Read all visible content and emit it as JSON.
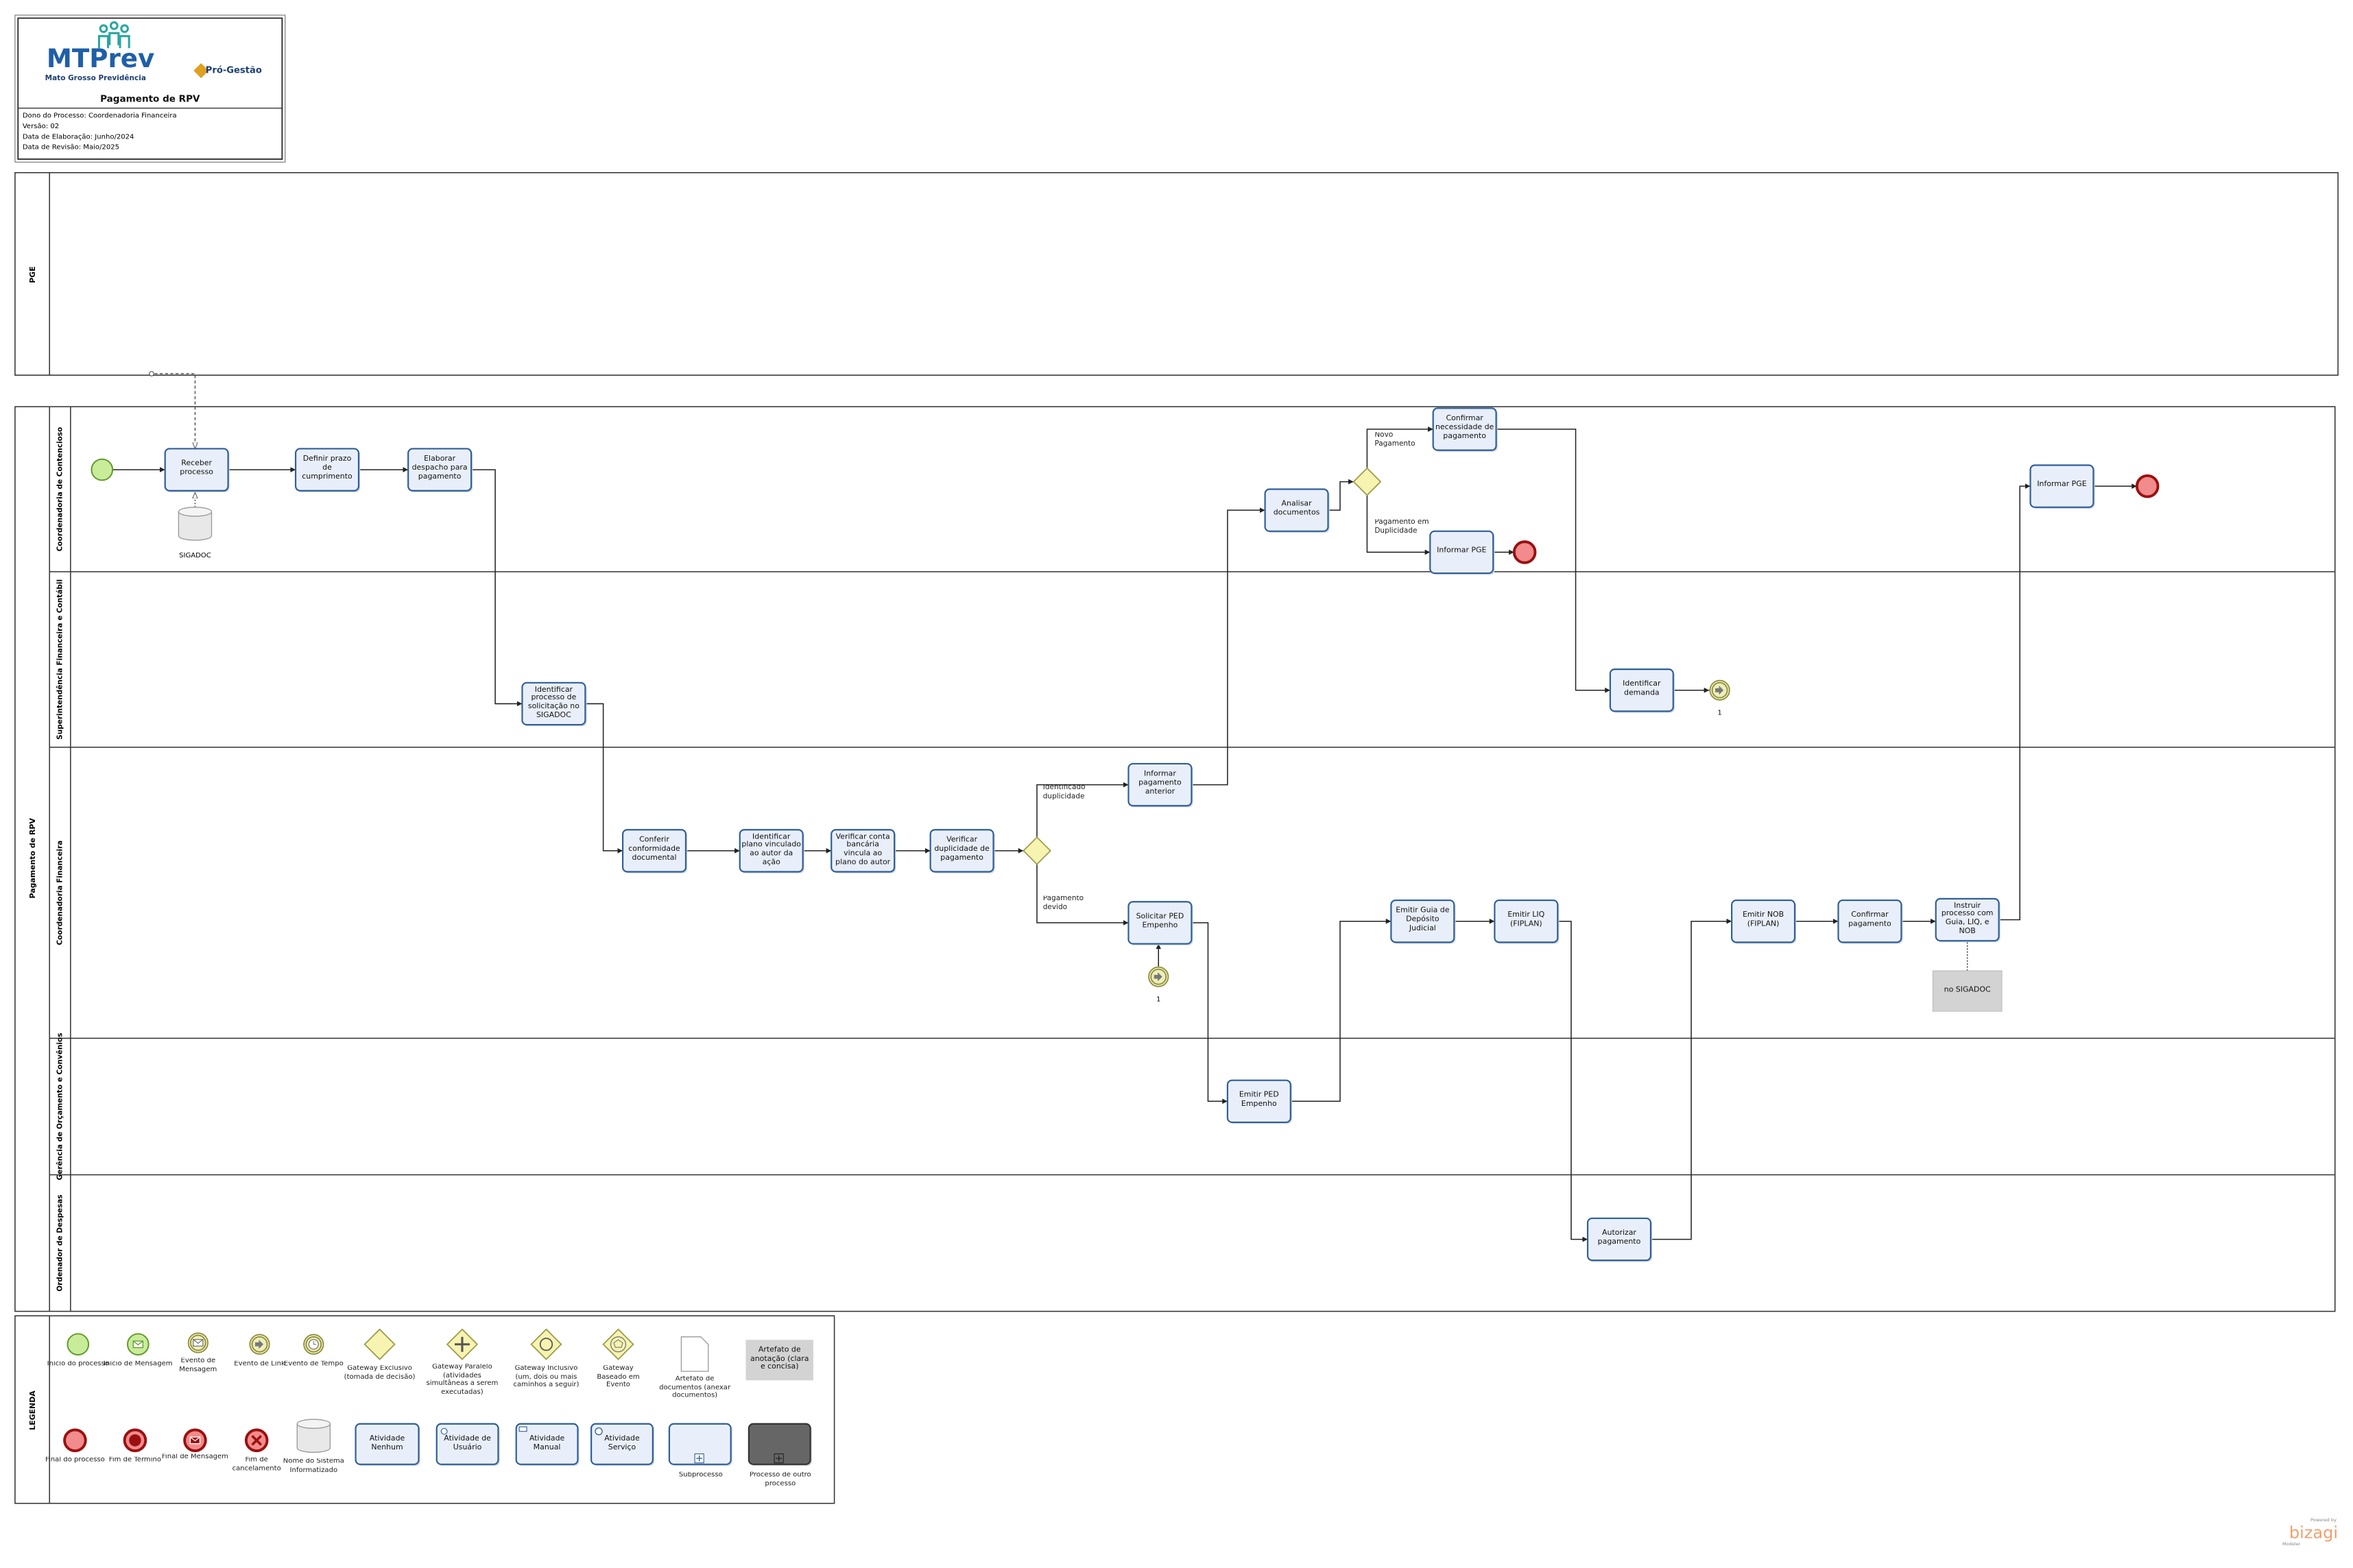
{
  "header": {
    "logo": "MTPrev",
    "logo_subtitle": "Mato Grosso Previdência",
    "partner_logo": "Pró-Gestão",
    "title": "Pagamento de RPV",
    "info": [
      "Dono do Processo: Coordenadoria Financeira",
      "Versão: 02",
      "Data de Elaboração: Junho/2024",
      "Data de Revisão: Maio/2025"
    ]
  },
  "pools": [
    {
      "name": "PGE"
    },
    {
      "name": "Pagamento de RPV",
      "lanes": [
        "Coordenadoria de Contencioso",
        "Superintendência Financeira e Contábil",
        "Coordenadoria Financeira",
        "Gerência de Orçamento e Convênios",
        "Ordenador de Despesas"
      ]
    }
  ],
  "tasks": [
    "Receber processo",
    "Definir prazo de cumprimento",
    "Elaborar despacho para pagamento",
    "Identificar processo de solicitação no SIGADOC",
    "Conferir conformidade documental",
    "Identificar plano vinculado ao autor da ação",
    "Verificar conta bancária vincula ao plano do autor",
    "Verificar duplicidade de pagamento",
    "Informar pagamento anterior",
    "Solicitar PED Empenho",
    "Analisar documentos",
    "Confirmar necessidade de pagamento",
    "Informar PGE",
    "Identificar demanda",
    "Emitir PED Empenho",
    "Emitir Guia de Depósito Judicial",
    "Emitir LIQ (FIPLAN)",
    "Autorizar pagamento",
    "Emitir NOB (FIPLAN)",
    "Confirmar pagamento",
    "Instruir processo com Guia, LIQ, e NOB",
    "Informar PGE"
  ],
  "gateway_labels": [
    "Identificado duplicidade",
    "Pagamento devido",
    "Novo Pagamento",
    "Pagamento em Duplicidade"
  ],
  "data_store": "SIGADOC",
  "link_labels": [
    "1",
    "1"
  ],
  "annotation": "no SIGADOC",
  "legend": {
    "title": "LEGENDA",
    "items": [
      "Início do processo",
      "Início de Mensagem",
      "Evento de Mensagem",
      "Evento de Link",
      "Evento de Tempo",
      "Gateway Exclusivo (tomada de decisão)",
      "Gateway Paralelo (atividades simultâneas a serem executadas)",
      "Gateway Inclusivo (um, dois ou mais caminhos a seguir)",
      "Gateway Baseado em Evento",
      "Artefato de documentos (anexar documentos)",
      "Artefato de anotação (clara e concisa)",
      "Final do processo",
      "Fim de Término",
      "Final de Mensagem",
      "Fim de cancelamento",
      "Nome do Sistema Informatizado",
      "Atividade Nenhum",
      "Atividade de Usuário",
      "Atividade Manual",
      "Atividade Serviço",
      "Subprocesso",
      "Processo de outro processo"
    ]
  },
  "footer": {
    "powered": "Powered by",
    "brand": "bizagi",
    "product": "Modeler"
  }
}
